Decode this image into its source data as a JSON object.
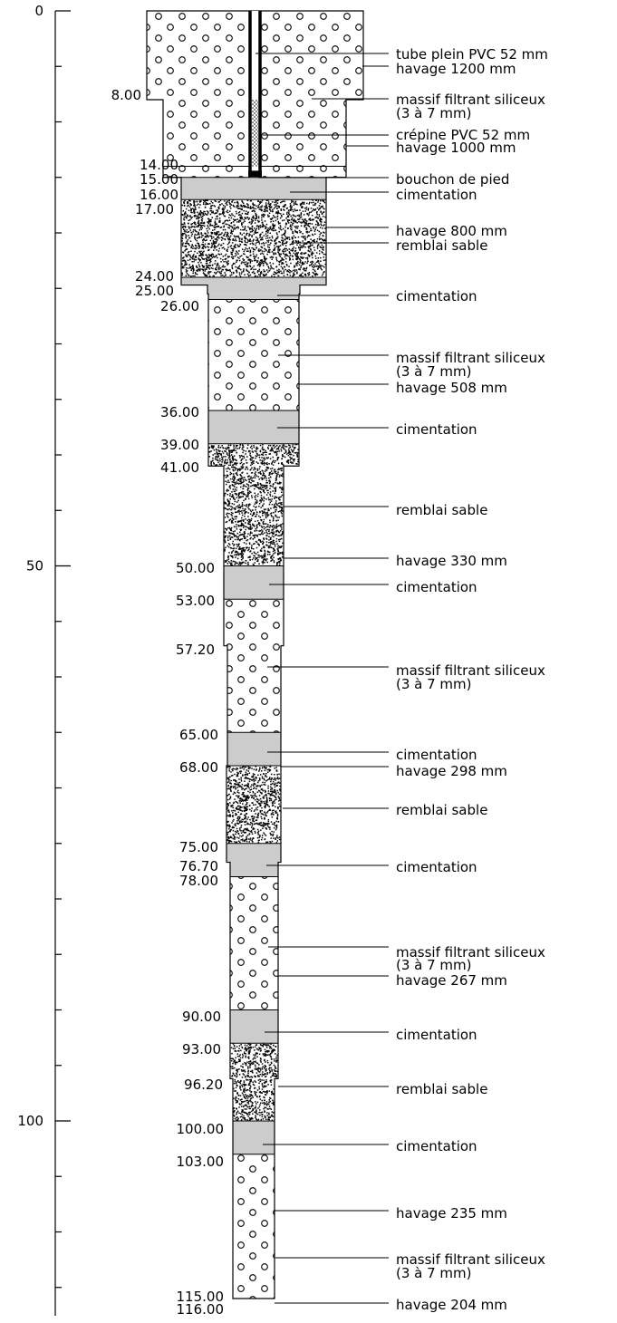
{
  "scale": {
    "ticks": [
      {
        "label": "0",
        "depth": 0
      },
      {
        "label": "50",
        "depth": 50
      },
      {
        "label": "100",
        "depth": 100
      }
    ],
    "minor_every": 5,
    "max_depth": 116
  },
  "depth_labels": [
    "8.00",
    "14.00",
    "15.00",
    "16.00",
    "17.00",
    "24.00",
    "25.00",
    "26.00",
    "36.00",
    "39.00",
    "41.00",
    "50.00",
    "53.00",
    "57.20",
    "65.00",
    "68.00",
    "75.00",
    "76.70",
    "78.00",
    "90.00",
    "93.00",
    "96.20",
    "100.00",
    "103.00",
    "115.00",
    "116.00"
  ],
  "materials": {
    "gravel": "massif filtrant siliceux",
    "sand": "remblai sable",
    "cement": "cimentation"
  },
  "layers": [
    {
      "top": 0,
      "bottom": 14,
      "type": "gravel"
    },
    {
      "top": 14,
      "bottom": 15,
      "type": "gravel"
    },
    {
      "top": 15,
      "bottom": 17,
      "type": "cement"
    },
    {
      "top": 17,
      "bottom": 24,
      "type": "sand"
    },
    {
      "top": 24,
      "bottom": 26,
      "type": "cement"
    },
    {
      "top": 26,
      "bottom": 36,
      "type": "gravel"
    },
    {
      "top": 36,
      "bottom": 39,
      "type": "cement"
    },
    {
      "top": 39,
      "bottom": 50,
      "type": "sand"
    },
    {
      "top": 50,
      "bottom": 53,
      "type": "cement"
    },
    {
      "top": 53,
      "bottom": 65,
      "type": "gravel"
    },
    {
      "top": 65,
      "bottom": 68,
      "type": "cement"
    },
    {
      "top": 68,
      "bottom": 75,
      "type": "sand"
    },
    {
      "top": 75,
      "bottom": 78,
      "type": "cement"
    },
    {
      "top": 78,
      "bottom": 90,
      "type": "gravel"
    },
    {
      "top": 90,
      "bottom": 93,
      "type": "cement"
    },
    {
      "top": 93,
      "bottom": 100,
      "type": "sand"
    },
    {
      "top": 100,
      "bottom": 103,
      "type": "cement"
    },
    {
      "top": 103,
      "bottom": 116,
      "type": "gravel"
    }
  ],
  "annotations": [
    {
      "lines": [
        "tube plein PVC 52 mm"
      ]
    },
    {
      "lines": [
        "havage 1200 mm"
      ]
    },
    {
      "lines": [
        "massif filtrant siliceux",
        "(3 à 7 mm)"
      ]
    },
    {
      "lines": [
        "crépine PVC 52 mm"
      ]
    },
    {
      "lines": [
        "havage 1000 mm"
      ]
    },
    {
      "lines": [
        "bouchon de pied"
      ]
    },
    {
      "lines": [
        "cimentation"
      ]
    },
    {
      "lines": [
        "havage 800 mm"
      ]
    },
    {
      "lines": [
        "remblai sable"
      ]
    },
    {
      "lines": [
        "cimentation"
      ]
    },
    {
      "lines": [
        "massif filtrant siliceux",
        "(3 à 7 mm)"
      ]
    },
    {
      "lines": [
        "havage 508 mm"
      ]
    },
    {
      "lines": [
        "cimentation"
      ]
    },
    {
      "lines": [
        "remblai sable"
      ]
    },
    {
      "lines": [
        "havage 330 mm"
      ]
    },
    {
      "lines": [
        "cimentation"
      ]
    },
    {
      "lines": [
        "massif filtrant siliceux",
        "(3 à 7 mm)"
      ]
    },
    {
      "lines": [
        "cimentation"
      ]
    },
    {
      "lines": [
        "havage 298 mm"
      ]
    },
    {
      "lines": [
        "remblai sable"
      ]
    },
    {
      "lines": [
        "cimentation"
      ]
    },
    {
      "lines": [
        "massif filtrant siliceux",
        "(3 à 7 mm)"
      ]
    },
    {
      "lines": [
        "havage 267 mm"
      ]
    },
    {
      "lines": [
        "cimentation"
      ]
    },
    {
      "lines": [
        "remblai sable"
      ]
    },
    {
      "lines": [
        "cimentation"
      ]
    },
    {
      "lines": [
        "havage 235 mm"
      ]
    },
    {
      "lines": [
        "massif filtrant siliceux",
        "(3 à 7 mm)"
      ]
    },
    {
      "lines": [
        "havage 204 mm"
      ]
    }
  ],
  "colors": {
    "cement": "#cccccc",
    "stroke": "#000000",
    "background": "#ffffff"
  }
}
